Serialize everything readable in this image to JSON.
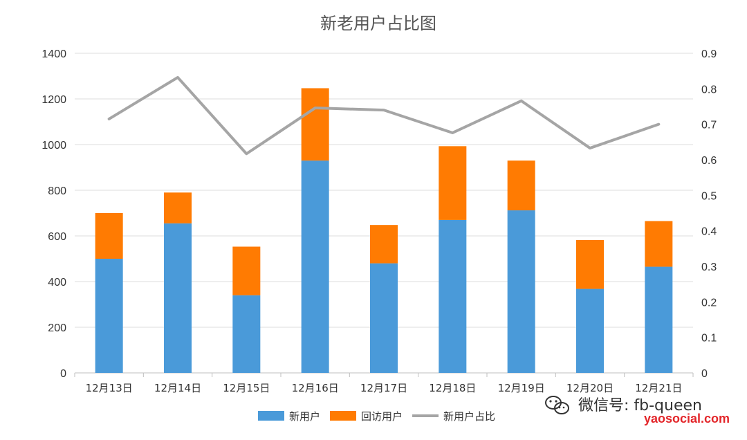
{
  "chart_data": {
    "type": "bar",
    "stacked": true,
    "title": "新老用户占比图",
    "categories": [
      "12月13日",
      "12月14日",
      "12月15日",
      "12月16日",
      "12月17日",
      "12月18日",
      "12月19日",
      "12月20日",
      "12月21日"
    ],
    "series": [
      {
        "name": "新用户",
        "type": "bar",
        "axis": "left",
        "color": "#4a9ad9",
        "values": [
          500,
          655,
          340,
          930,
          480,
          670,
          712,
          368,
          465
        ]
      },
      {
        "name": "回访用户",
        "type": "bar",
        "axis": "left",
        "color": "#ff7b02",
        "values": [
          200,
          135,
          213,
          317,
          168,
          323,
          218,
          214,
          200
        ]
      },
      {
        "name": "新用户占比",
        "type": "line",
        "axis": "right",
        "color": "#a5a5a5",
        "values": [
          0.715,
          0.832,
          0.617,
          0.746,
          0.74,
          0.676,
          0.766,
          0.633,
          0.7
        ]
      }
    ],
    "ylim_left": [
      0,
      1400
    ],
    "yticks_left": [
      "0",
      "200",
      "400",
      "600",
      "800",
      "1000",
      "1200",
      "1400"
    ],
    "ylim_right": [
      0,
      0.9
    ],
    "yticks_right": [
      "0",
      "0.1",
      "0.2",
      "0.3",
      "0.4",
      "0.5",
      "0.6",
      "0.7",
      "0.8",
      "0.9"
    ],
    "grid": true,
    "legend_position": "bottom"
  },
  "watermark": {
    "wechat": "微信号: fb-queen",
    "site": "yaosocial.com",
    "icon": "wechat-icon"
  }
}
